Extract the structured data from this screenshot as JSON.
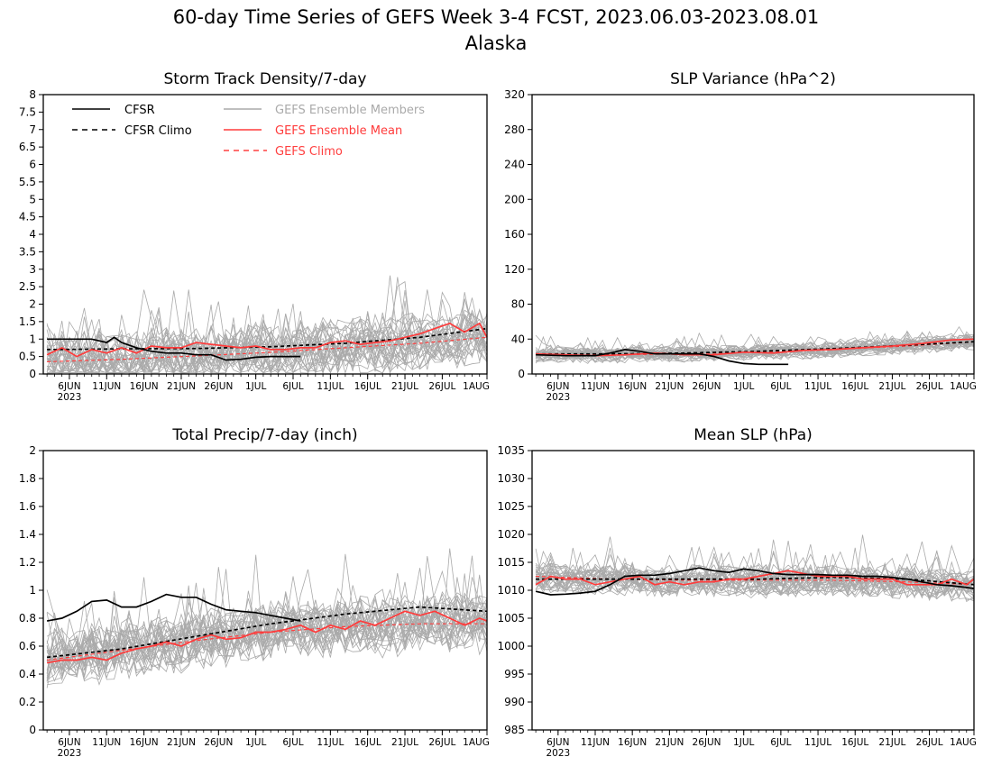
{
  "figure": {
    "title": "60-day Time Series of GEFS Week 3-4 FCST, 2023.06.03-2023.08.01",
    "subtitle": "Alaska"
  },
  "colors": {
    "cfsr": "#000000",
    "members": "#aaaaaa",
    "mean": "#ff3b3b",
    "gefs_climo": "#ff4040",
    "axis": "#000000"
  },
  "legend": {
    "cfsr": "CFSR",
    "cfsr_climo": "CFSR Climo",
    "members": "GEFS Ensemble Members",
    "mean": "GEFS Ensemble Mean",
    "gefs_climo": "GEFS Climo"
  },
  "x_axis": {
    "ticks": [
      {
        "day": 3,
        "label": "6JUN"
      },
      {
        "day": 8,
        "label": "11JUN"
      },
      {
        "day": 13,
        "label": "16JUN"
      },
      {
        "day": 18,
        "label": "21JUN"
      },
      {
        "day": 23,
        "label": "26JUN"
      },
      {
        "day": 28,
        "label": "1JUL"
      },
      {
        "day": 33,
        "label": "6JUL"
      },
      {
        "day": 38,
        "label": "11JUL"
      },
      {
        "day": 43,
        "label": "16JUL"
      },
      {
        "day": 48,
        "label": "21JUL"
      },
      {
        "day": 53,
        "label": "26JUL"
      },
      {
        "day": 59,
        "label": "1AUG"
      }
    ],
    "year_label": "2023"
  },
  "chart_data": [
    {
      "type": "line",
      "title": "Storm Track Density/7-day",
      "ylim": [
        0,
        8
      ],
      "yticks": [
        "0",
        "0.5",
        "1",
        "1.5",
        "2",
        "2.5",
        "3",
        "3.5",
        "4",
        "4.5",
        "5",
        "5.5",
        "6",
        "6.5",
        "7",
        "7.5",
        "8"
      ],
      "members_count": 31,
      "members_spread": 0.6,
      "members_nonneg": true,
      "series": [
        {
          "role": "cfsr_climo",
          "x": [
            0,
            10,
            20,
            30,
            40,
            50,
            59
          ],
          "y": [
            0.7,
            0.72,
            0.73,
            0.78,
            0.88,
            1.05,
            1.3
          ]
        },
        {
          "role": "gefs_climo",
          "x": [
            0,
            10,
            20,
            30,
            40,
            50,
            59
          ],
          "y": [
            0.35,
            0.42,
            0.52,
            0.62,
            0.75,
            0.88,
            1.05
          ]
        },
        {
          "role": "mean",
          "x": [
            0,
            2,
            4,
            6,
            8,
            10,
            12,
            14,
            16,
            18,
            20,
            22,
            24,
            26,
            28,
            30,
            32,
            34,
            36,
            38,
            40,
            42,
            44,
            46,
            48,
            50,
            52,
            54,
            56,
            58,
            59
          ],
          "y": [
            0.55,
            0.75,
            0.5,
            0.7,
            0.6,
            0.75,
            0.6,
            0.8,
            0.75,
            0.75,
            0.9,
            0.85,
            0.8,
            0.75,
            0.8,
            0.7,
            0.7,
            0.75,
            0.75,
            0.9,
            0.95,
            0.85,
            0.9,
            0.95,
            1.05,
            1.15,
            1.3,
            1.45,
            1.2,
            1.45,
            1.05
          ]
        },
        {
          "role": "cfsr",
          "x": [
            0,
            2,
            4,
            6,
            8,
            9,
            10,
            12,
            14,
            16,
            18,
            20,
            22,
            24,
            26,
            28,
            30,
            32,
            34
          ],
          "y": [
            1.0,
            1.0,
            1.0,
            1.0,
            0.9,
            1.05,
            0.9,
            0.75,
            0.65,
            0.6,
            0.6,
            0.55,
            0.55,
            0.4,
            0.42,
            0.48,
            0.5,
            0.5,
            0.5
          ]
        }
      ]
    },
    {
      "type": "line",
      "title": "SLP Variance (hPa^2)",
      "ylim": [
        0,
        320
      ],
      "yticks": [
        "0",
        "40",
        "80",
        "120",
        "160",
        "200",
        "240",
        "280",
        "320"
      ],
      "members_count": 31,
      "members_spread": 7,
      "members_nonneg": true,
      "series": [
        {
          "role": "cfsr_climo",
          "x": [
            0,
            10,
            20,
            30,
            40,
            50,
            59
          ],
          "y": [
            23,
            23,
            24,
            26,
            29,
            33,
            37
          ]
        },
        {
          "role": "gefs_climo",
          "x": [
            0,
            10,
            20,
            30,
            40,
            50,
            59
          ],
          "y": [
            22,
            22,
            23,
            25,
            28,
            32,
            37
          ]
        },
        {
          "role": "mean",
          "x": [
            0,
            4,
            8,
            12,
            16,
            20,
            24,
            28,
            32,
            36,
            40,
            44,
            48,
            52,
            56,
            59
          ],
          "y": [
            23,
            22,
            21,
            22,
            24,
            22,
            22,
            25,
            24,
            27,
            28,
            30,
            32,
            35,
            39,
            40
          ]
        },
        {
          "role": "cfsr",
          "x": [
            0,
            4,
            8,
            10,
            12,
            14,
            16,
            18,
            20,
            22,
            24,
            26,
            28,
            30,
            32,
            34
          ],
          "y": [
            22,
            21,
            21,
            24,
            28,
            26,
            23,
            23,
            23,
            23,
            20,
            15,
            12,
            11,
            11,
            11
          ]
        }
      ]
    },
    {
      "type": "line",
      "title": "Total Precip/7-day (inch)",
      "ylim": [
        0,
        2
      ],
      "yticks": [
        "0",
        "0.2",
        "0.4",
        "0.6",
        "0.8",
        "1",
        "1.2",
        "1.4",
        "1.6",
        "1.8",
        "2"
      ],
      "members_count": 31,
      "members_spread": 0.16,
      "members_nonneg": true,
      "series": [
        {
          "role": "cfsr_climo",
          "x": [
            0,
            10,
            20,
            30,
            40,
            50,
            59
          ],
          "y": [
            0.52,
            0.58,
            0.67,
            0.76,
            0.83,
            0.88,
            0.85
          ]
        },
        {
          "role": "gefs_climo",
          "x": [
            0,
            10,
            20,
            30,
            40,
            50,
            59
          ],
          "y": [
            0.5,
            0.57,
            0.64,
            0.7,
            0.74,
            0.76,
            0.76
          ]
        },
        {
          "role": "mean",
          "x": [
            0,
            2,
            4,
            6,
            8,
            10,
            12,
            14,
            16,
            18,
            20,
            22,
            24,
            26,
            28,
            30,
            32,
            34,
            36,
            38,
            40,
            42,
            44,
            46,
            48,
            50,
            52,
            54,
            56,
            58,
            59
          ],
          "y": [
            0.48,
            0.5,
            0.5,
            0.52,
            0.5,
            0.55,
            0.58,
            0.6,
            0.63,
            0.6,
            0.65,
            0.68,
            0.65,
            0.66,
            0.7,
            0.7,
            0.72,
            0.75,
            0.7,
            0.75,
            0.72,
            0.78,
            0.75,
            0.8,
            0.85,
            0.82,
            0.85,
            0.8,
            0.75,
            0.8,
            0.78
          ]
        },
        {
          "role": "cfsr",
          "x": [
            0,
            2,
            4,
            6,
            8,
            10,
            12,
            14,
            16,
            18,
            20,
            22,
            24,
            26,
            28,
            30,
            32,
            34
          ],
          "y": [
            0.78,
            0.8,
            0.85,
            0.92,
            0.93,
            0.88,
            0.88,
            0.92,
            0.97,
            0.95,
            0.95,
            0.9,
            0.86,
            0.85,
            0.84,
            0.82,
            0.8,
            0.78
          ]
        }
      ]
    },
    {
      "type": "line",
      "title": "Mean SLP (hPa)",
      "ylim": [
        985,
        1035
      ],
      "yticks": [
        "985",
        "990",
        "995",
        "1000",
        "1005",
        "1010",
        "1015",
        "1020",
        "1025",
        "1030",
        "1035"
      ],
      "members_count": 31,
      "members_spread": 2.2,
      "members_nonneg": false,
      "series": [
        {
          "role": "cfsr_climo",
          "x": [
            0,
            10,
            20,
            30,
            40,
            50,
            59
          ],
          "y": [
            1012,
            1012,
            1012,
            1012,
            1012.3,
            1012,
            1011
          ]
        },
        {
          "role": "gefs_climo",
          "x": [
            0,
            10,
            20,
            30,
            40,
            50,
            59
          ],
          "y": [
            1012.5,
            1012,
            1011.8,
            1011.8,
            1011.8,
            1011.5,
            1011
          ]
        },
        {
          "role": "mean",
          "x": [
            0,
            2,
            4,
            6,
            8,
            10,
            12,
            14,
            16,
            18,
            20,
            22,
            24,
            26,
            28,
            30,
            32,
            34,
            36,
            38,
            40,
            42,
            44,
            46,
            48,
            50,
            52,
            54,
            56,
            58,
            59
          ],
          "y": [
            1011,
            1012.5,
            1012,
            1012,
            1011,
            1011.5,
            1012,
            1012.5,
            1011,
            1011.5,
            1011,
            1011.5,
            1011.5,
            1012,
            1012,
            1012.5,
            1013,
            1013.5,
            1013,
            1012.5,
            1012.5,
            1012.5,
            1012,
            1012,
            1012,
            1011,
            1011,
            1011,
            1012,
            1011,
            1012
          ]
        },
        {
          "role": "cfsr",
          "x": [
            0,
            2,
            4,
            6,
            8,
            10,
            12,
            14,
            16,
            18,
            20,
            22,
            24,
            26,
            28,
            30,
            32,
            34,
            36,
            38,
            40,
            42,
            44,
            46,
            48,
            50,
            52,
            54,
            56,
            58,
            59
          ],
          "y": [
            1009.8,
            1009.2,
            1009.3,
            1009.5,
            1009.8,
            1011,
            1012.5,
            1012.7,
            1012.7,
            1013,
            1013.5,
            1014,
            1013.5,
            1013.2,
            1013.8,
            1013.5,
            1013,
            1012.8,
            1012.8,
            1012.8,
            1012.7,
            1012.7,
            1012.5,
            1012.5,
            1012.3,
            1012,
            1011.5,
            1011,
            1010.8,
            1010.5,
            1010.3
          ]
        }
      ]
    }
  ]
}
